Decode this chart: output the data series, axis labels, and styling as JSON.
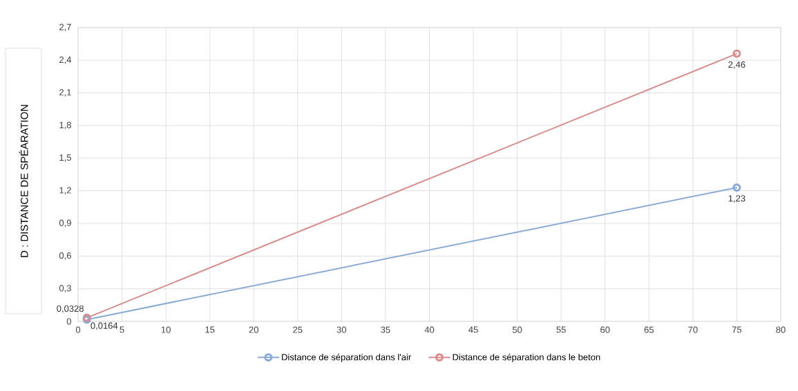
{
  "chart_data": {
    "type": "line",
    "ylabel": "D : DISTANCE DE SPÉARATION",
    "x": [
      1,
      75
    ],
    "series": [
      {
        "name": "Distance de séparation dans l'air",
        "color": "#8aaad6",
        "values": [
          0.0164,
          1.23
        ],
        "value_labels": [
          "0,0164",
          "1,23"
        ]
      },
      {
        "name": "Distance de séparation dans le beton",
        "color": "#d98c8c",
        "values": [
          0.0328,
          2.46
        ],
        "value_labels": [
          "0,0328",
          "2,46"
        ]
      }
    ],
    "xlim": [
      0,
      80
    ],
    "xticks": [
      0,
      5,
      10,
      15,
      20,
      25,
      30,
      35,
      40,
      45,
      50,
      55,
      60,
      65,
      70,
      75,
      80
    ],
    "ylim": [
      0,
      2.7
    ],
    "yticks": [
      0,
      {
        "value": 0.3,
        "label": "0,3"
      },
      {
        "value": 0.6,
        "label": "0,6"
      },
      {
        "value": 0.9,
        "label": "0,9"
      },
      {
        "value": 1.2,
        "label": "1,2"
      },
      {
        "value": 1.5,
        "label": "1,5"
      },
      {
        "value": 1.8,
        "label": "1,8"
      },
      {
        "value": 2.1,
        "label": "2,1"
      },
      {
        "value": 2.4,
        "label": "2,4"
      },
      {
        "value": 2.7,
        "label": "2,7"
      }
    ],
    "grid": true,
    "legend": "bottom",
    "marker": "circle",
    "line_style": "solid"
  }
}
